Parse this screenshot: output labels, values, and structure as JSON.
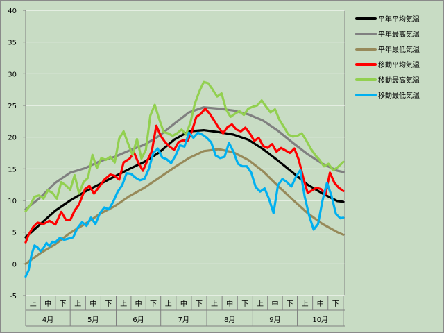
{
  "chart_data": {
    "type": "line",
    "title": "",
    "xlabel": "",
    "ylabel": "",
    "ylim": [
      -5,
      40
    ],
    "yticks": [
      -5,
      0,
      5,
      10,
      15,
      20,
      25,
      30,
      35,
      40
    ],
    "x_range": [
      0,
      215
    ],
    "grid": true,
    "legend_position": "right",
    "months": [
      "4月",
      "5月",
      "6月",
      "7月",
      "8月",
      "9月",
      "10月"
    ],
    "month_bounds": [
      0,
      30,
      61,
      91,
      122,
      153,
      183,
      214
    ],
    "decades": [
      "上",
      "中",
      "下"
    ],
    "series": [
      {
        "name": "平年平均気温",
        "color": "#000000",
        "x": [
          0,
          10,
          20,
          30,
          40,
          50,
          60,
          70,
          80,
          90,
          100,
          110,
          120,
          130,
          140,
          150,
          160,
          170,
          180,
          190,
          200,
          210,
          214
        ],
        "values": [
          4.2,
          6.3,
          8.4,
          10.0,
          11.4,
          12.6,
          13.8,
          15.0,
          16.1,
          17.6,
          19.6,
          20.9,
          21.1,
          20.8,
          20.4,
          19.6,
          18.1,
          16.3,
          14.4,
          12.5,
          11.1,
          9.9,
          9.8
        ]
      },
      {
        "name": "平年最高気温",
        "color": "#808080",
        "x": [
          0,
          10,
          20,
          30,
          40,
          50,
          60,
          70,
          80,
          90,
          100,
          110,
          120,
          130,
          140,
          150,
          160,
          170,
          180,
          190,
          200,
          210,
          214
        ],
        "values": [
          8.6,
          10.5,
          12.8,
          14.4,
          15.1,
          16.2,
          16.9,
          17.9,
          18.8,
          20.2,
          22.1,
          23.9,
          24.7,
          24.5,
          24.2,
          23.6,
          22.6,
          21.0,
          19.1,
          17.3,
          15.8,
          14.7,
          14.5
        ]
      },
      {
        "name": "平年最低気温",
        "color": "#978a5a",
        "x": [
          0,
          10,
          20,
          30,
          40,
          50,
          60,
          70,
          80,
          90,
          100,
          110,
          120,
          130,
          140,
          150,
          160,
          170,
          180,
          190,
          200,
          210,
          214
        ],
        "values": [
          0.0,
          1.7,
          3.1,
          4.9,
          6.3,
          7.9,
          9.1,
          10.7,
          12.0,
          13.6,
          15.2,
          16.7,
          17.8,
          18.1,
          17.6,
          16.4,
          14.6,
          12.3,
          10.1,
          8.0,
          6.3,
          5.0,
          4.6
        ]
      },
      {
        "name": "移動平均気温",
        "color": "#ff0000",
        "x": [
          0,
          2,
          5,
          8,
          12,
          16,
          20,
          24,
          27,
          30,
          33,
          36,
          40,
          43,
          46,
          50,
          53,
          57,
          60,
          63,
          66,
          70,
          73,
          76,
          79,
          82,
          85,
          88,
          91,
          94,
          97,
          100,
          103,
          106,
          109,
          112,
          115,
          118,
          121,
          124,
          127,
          130,
          133,
          136,
          139,
          142,
          145,
          148,
          151,
          154,
          157,
          160,
          163,
          166,
          169,
          172,
          175,
          178,
          181,
          184,
          187,
          190,
          193,
          196,
          199,
          202,
          205,
          208,
          211,
          214
        ],
        "values": [
          3.4,
          4.6,
          5.8,
          6.5,
          6.3,
          6.8,
          6.2,
          8.2,
          7.0,
          6.9,
          8.4,
          9.4,
          11.8,
          12.3,
          11.1,
          12.3,
          13.3,
          14.1,
          13.9,
          13.3,
          16.0,
          16.6,
          17.6,
          15.9,
          14.7,
          16.3,
          17.8,
          21.8,
          20.2,
          19.2,
          18.5,
          18.0,
          19.2,
          19.5,
          19.4,
          20.9,
          23.2,
          23.7,
          24.5,
          23.7,
          22.6,
          21.5,
          20.6,
          21.6,
          22.0,
          21.2,
          20.9,
          21.5,
          20.6,
          19.4,
          19.9,
          18.6,
          18.3,
          18.9,
          17.7,
          18.3,
          17.9,
          17.5,
          18.2,
          16.4,
          13.6,
          11.2,
          11.6,
          12.0,
          11.8,
          11.0,
          14.4,
          12.8,
          12.0,
          11.5
        ]
      },
      {
        "name": "移動最高気温",
        "color": "#92d050",
        "x": [
          0,
          3,
          6,
          9,
          12,
          15,
          18,
          21,
          24,
          27,
          30,
          33,
          36,
          39,
          42,
          45,
          48,
          51,
          54,
          57,
          60,
          63,
          66,
          69,
          72,
          75,
          78,
          81,
          84,
          87,
          90,
          93,
          96,
          99,
          102,
          105,
          108,
          111,
          114,
          117,
          120,
          123,
          126,
          129,
          132,
          135,
          138,
          141,
          144,
          147,
          150,
          153,
          156,
          159,
          162,
          165,
          168,
          171,
          174,
          177,
          180,
          183,
          186,
          189,
          192,
          195,
          198,
          201,
          204,
          207,
          210,
          214
        ],
        "values": [
          8.3,
          9.2,
          10.6,
          10.8,
          10.3,
          11.6,
          11.2,
          10.3,
          12.9,
          12.4,
          11.7,
          14.0,
          11.1,
          12.9,
          13.6,
          17.2,
          15.1,
          16.7,
          16.4,
          16.9,
          16.0,
          19.8,
          20.9,
          19.0,
          17.2,
          19.7,
          16.6,
          18.0,
          23.4,
          25.1,
          22.8,
          20.8,
          20.6,
          20.2,
          20.6,
          21.2,
          20.4,
          22.3,
          25.3,
          27.2,
          28.7,
          28.5,
          27.5,
          26.4,
          26.9,
          24.4,
          23.2,
          23.7,
          24.1,
          23.5,
          24.5,
          24.8,
          25.0,
          25.8,
          24.8,
          23.9,
          24.4,
          22.7,
          21.6,
          20.4,
          20.1,
          20.2,
          20.6,
          19.5,
          18.2,
          17.2,
          16.4,
          15.4,
          15.8,
          14.8,
          15.2,
          16.1
        ]
      },
      {
        "name": "移動最低気温",
        "color": "#00b0f0",
        "x": [
          0,
          2,
          4,
          6,
          8,
          10,
          12,
          14,
          16,
          18,
          20,
          23,
          26,
          29,
          32,
          35,
          38,
          41,
          44,
          47,
          50,
          53,
          56,
          59,
          62,
          65,
          68,
          71,
          74,
          77,
          80,
          83,
          86,
          89,
          92,
          95,
          98,
          101,
          104,
          107,
          110,
          113,
          116,
          119,
          122,
          125,
          128,
          131,
          134,
          137,
          140,
          143,
          146,
          149,
          152,
          155,
          158,
          161,
          164,
          167,
          170,
          173,
          176,
          179,
          182,
          185,
          188,
          191,
          194,
          197,
          200,
          203,
          206,
          209,
          212,
          214
        ],
        "values": [
          -2.0,
          -1.0,
          1.5,
          2.9,
          2.6,
          2.0,
          2.5,
          3.3,
          2.8,
          3.5,
          3.4,
          4.1,
          3.8,
          4.0,
          4.2,
          5.7,
          6.6,
          6.0,
          7.3,
          6.3,
          8.0,
          8.9,
          8.6,
          9.8,
          11.4,
          12.4,
          14.3,
          14.2,
          13.6,
          13.2,
          13.4,
          15.0,
          17.5,
          18.2,
          16.8,
          16.5,
          15.9,
          17.1,
          18.7,
          18.5,
          20.7,
          19.9,
          20.7,
          20.4,
          19.9,
          19.2,
          17.1,
          16.7,
          16.9,
          19.1,
          17.7,
          15.8,
          15.4,
          15.4,
          14.4,
          12.1,
          11.4,
          11.9,
          10.2,
          8.0,
          12.4,
          13.4,
          12.9,
          12.2,
          13.7,
          14.8,
          10.6,
          7.6,
          5.4,
          6.3,
          10.0,
          12.8,
          10.8,
          7.9,
          7.2,
          7.3
        ]
      }
    ]
  }
}
